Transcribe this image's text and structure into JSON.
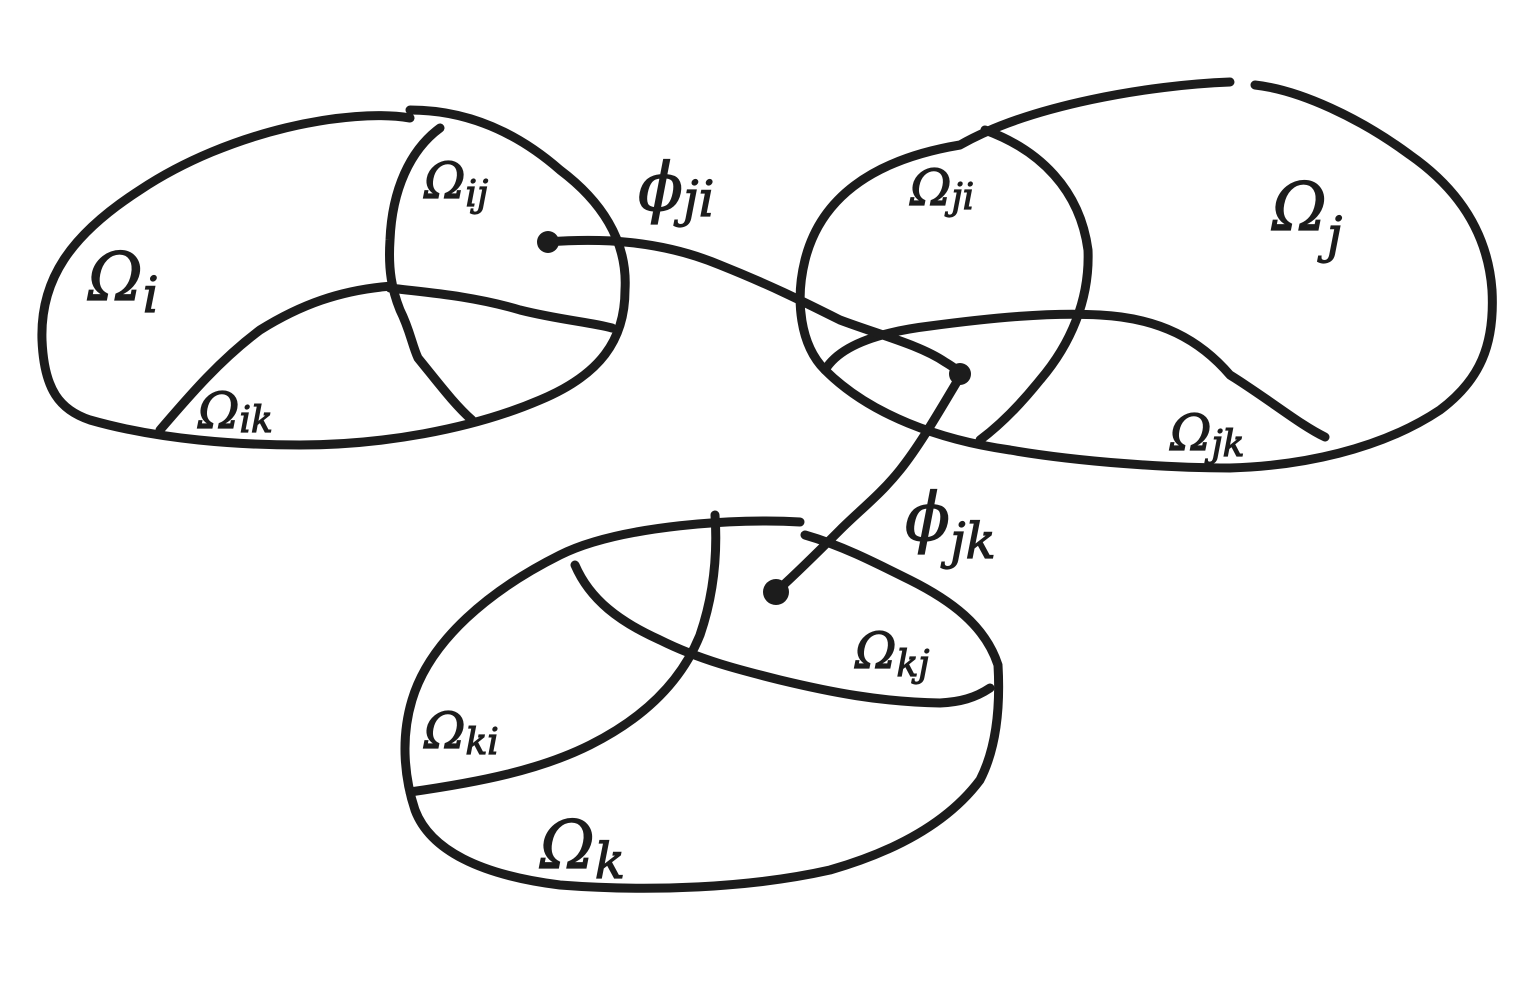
{
  "diagram": {
    "regions": [
      {
        "symbol": "Ω",
        "subscript": "i"
      },
      {
        "symbol": "Ω",
        "subscript": "j"
      },
      {
        "symbol": "Ω",
        "subscript": "k"
      }
    ],
    "overlaps": [
      {
        "symbol": "Ω",
        "subscript": "ij"
      },
      {
        "symbol": "Ω",
        "subscript": "ik"
      },
      {
        "symbol": "Ω",
        "subscript": "ji"
      },
      {
        "symbol": "Ω",
        "subscript": "jk"
      },
      {
        "symbol": "Ω",
        "subscript": "ki"
      },
      {
        "symbol": "Ω",
        "subscript": "kj"
      }
    ],
    "maps": [
      {
        "symbol": "ϕ",
        "subscript": "ji"
      },
      {
        "symbol": "ϕ",
        "subscript": "jk"
      }
    ]
  },
  "colors": {
    "ink": "#1c1c1c",
    "background": "#ffffff"
  }
}
